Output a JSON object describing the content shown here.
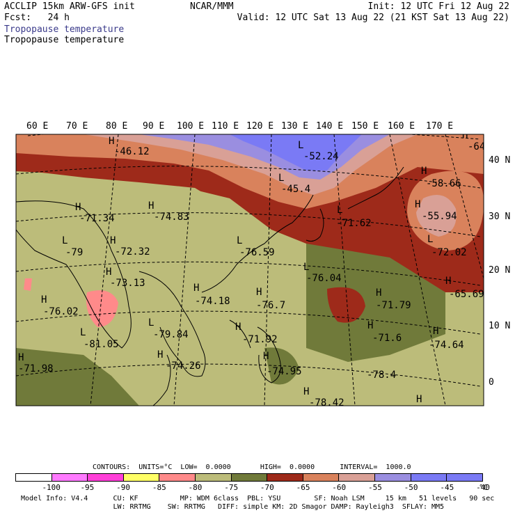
{
  "header": {
    "title": "ACCLIP 15km ARW-GFS init",
    "fcst_label": "Fcst:",
    "fcst_value": "24 h",
    "field_primary": "Tropopause temperature",
    "field_secondary": "Tropopause temperature",
    "source": "NCAR/MMM",
    "init": "Init: 12 UTC Fri 12 Aug 22",
    "valid": "Valid: 12 UTC Sat 13 Aug 22 (21 KST Sat 13 Aug 22)"
  },
  "map": {
    "lon_labels": [
      "60 E",
      "70 E",
      "80 E",
      "90 E",
      "100 E",
      "110 E",
      "120 E",
      "130 E",
      "140 E",
      "150 E",
      "160 E",
      "170 E"
    ],
    "lat_labels": [
      "40 N",
      "30 N",
      "20 N",
      "10 N",
      "0"
    ],
    "highs_lows": [
      {
        "mark": "H",
        "value": "-46.12"
      },
      {
        "mark": "L",
        "value": "-52.24"
      },
      {
        "mark": "L",
        "value": "-45.4"
      },
      {
        "mark": "H",
        "value": "-64"
      },
      {
        "mark": "H",
        "value": "-58.66"
      },
      {
        "mark": "H",
        "value": "-55.94"
      },
      {
        "mark": "H",
        "value": "-71.34"
      },
      {
        "mark": "H",
        "value": "-74.83"
      },
      {
        "mark": "L",
        "value": "-71.62"
      },
      {
        "mark": "L",
        "value": "-79"
      },
      {
        "mark": "H",
        "value": "-72.32"
      },
      {
        "mark": "L",
        "value": "-76.59"
      },
      {
        "mark": "L",
        "value": "-72.02"
      },
      {
        "mark": "H",
        "value": "-73.13"
      },
      {
        "mark": "L",
        "value": "-76.04"
      },
      {
        "mark": "H",
        "value": "-65.69"
      },
      {
        "mark": "H",
        "value": "-76.02"
      },
      {
        "mark": "H",
        "value": "-74.18"
      },
      {
        "mark": "H",
        "value": "-76.7"
      },
      {
        "mark": "H",
        "value": "-71.79"
      },
      {
        "mark": "L",
        "value": "-79.84"
      },
      {
        "mark": "L",
        "value": "-81.05"
      },
      {
        "mark": "H",
        "value": "-71.92"
      },
      {
        "mark": "H",
        "value": "-71.6"
      },
      {
        "mark": "H",
        "value": "-74.64"
      },
      {
        "mark": "H",
        "value": "-71.98"
      },
      {
        "mark": "H",
        "value": "-74.26"
      },
      {
        "mark": "H",
        "value": "-74.95"
      },
      {
        "mark": "",
        "value": "-78.4"
      },
      {
        "mark": "H",
        "value": "-78.42"
      },
      {
        "mark": "H",
        "value": ""
      }
    ]
  },
  "colorbar": {
    "info": "CONTOURS:  UNITS=°C  LOW=  0.0000       HIGH=  0.0000      INTERVAL=  1000.0",
    "colors": [
      "#ffffff",
      "#ff7aff",
      "#ff3fd8",
      "#ffff66",
      "#ff8a8a",
      "#bcbc7a",
      "#707a3a",
      "#9e2a1a",
      "#d9825c",
      "#d9a096",
      "#9a8ee0",
      "#7a7af5",
      "#7a7af5"
    ],
    "ticks": [
      "-100",
      "-95",
      "-90",
      "-85",
      "-80",
      "-75",
      "-70",
      "-65",
      "-60",
      "-55",
      "-50",
      "-45",
      "-40"
    ],
    "unit": "°C"
  },
  "model_info": {
    "line1": "Model Info: V4.4      CU: KF          MP: WDM 6class  PBL: YSU        SF: Noah LSM     15 km   51 levels   90 sec",
    "line2": "                      LW: RRTMG    SW: RRTMG   DIFF: simple KM: 2D Smagor DAMP: Rayleigh3  SFLAY: MM5"
  }
}
